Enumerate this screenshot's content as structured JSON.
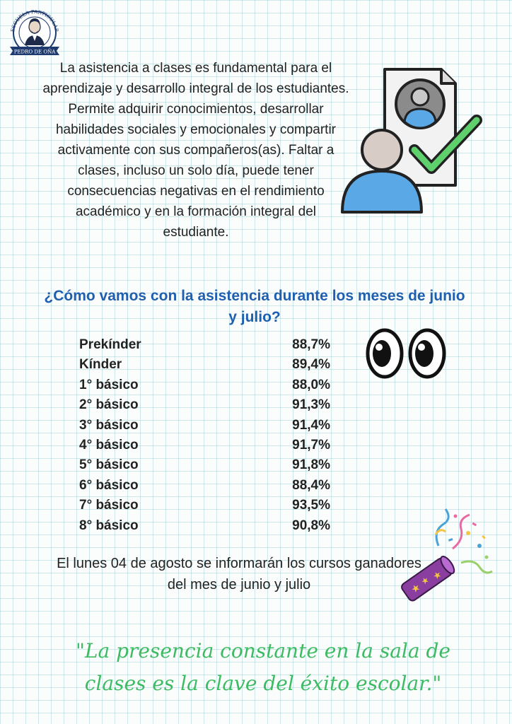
{
  "logo": {
    "arc_text": "ESCUELA PARTICULAR",
    "ribbon_text": "PEDRO DE OÑA",
    "icon": "school-crest-icon"
  },
  "intro_paragraph": "La asistencia a clases es fundamental para el aprendizaje y desarrollo integral de los estudiantes. Permite adquirir conocimientos, desarrollar habilidades sociales y emocionales y compartir activamente con sus compañeros(as). Faltar a clases, incluso un solo día, puede tener consecuencias negativas en el rendimiento académico y en la formación integral del estudiante.",
  "question": "¿Cómo vamos con la asistencia durante los meses de junio y julio?",
  "attendance": [
    {
      "course": "Prekínder",
      "value": "88,7%"
    },
    {
      "course": "Kínder",
      "value": "89,4%"
    },
    {
      "course": "1° básico",
      "value": "88,0%"
    },
    {
      "course": "2° básico",
      "value": "91,3%"
    },
    {
      "course": "3° básico",
      "value": "91,4%"
    },
    {
      "course": "4° básico",
      "value": "91,7%"
    },
    {
      "course": "5° básico",
      "value": "91,8%"
    },
    {
      "course": "6° básico",
      "value": "88,4%"
    },
    {
      "course": "7° básico",
      "value": "93,5%"
    },
    {
      "course": "8° básico",
      "value": "90,8%"
    }
  ],
  "announcement": "El lunes 04 de agosto se informarán los cursos ganadores del mes de junio y julio",
  "quote": "\"La presencia constante en la sala de clases es la clave del éxito escolar.\"",
  "icons": {
    "illustration": "attendance-check-icon",
    "eyes": "eyes-icon",
    "popper": "party-popper-icon"
  },
  "colors": {
    "question": "#1f5fb0",
    "quote": "#3dbb62",
    "check": "#5ed16d",
    "person": "#5aa8e6"
  }
}
